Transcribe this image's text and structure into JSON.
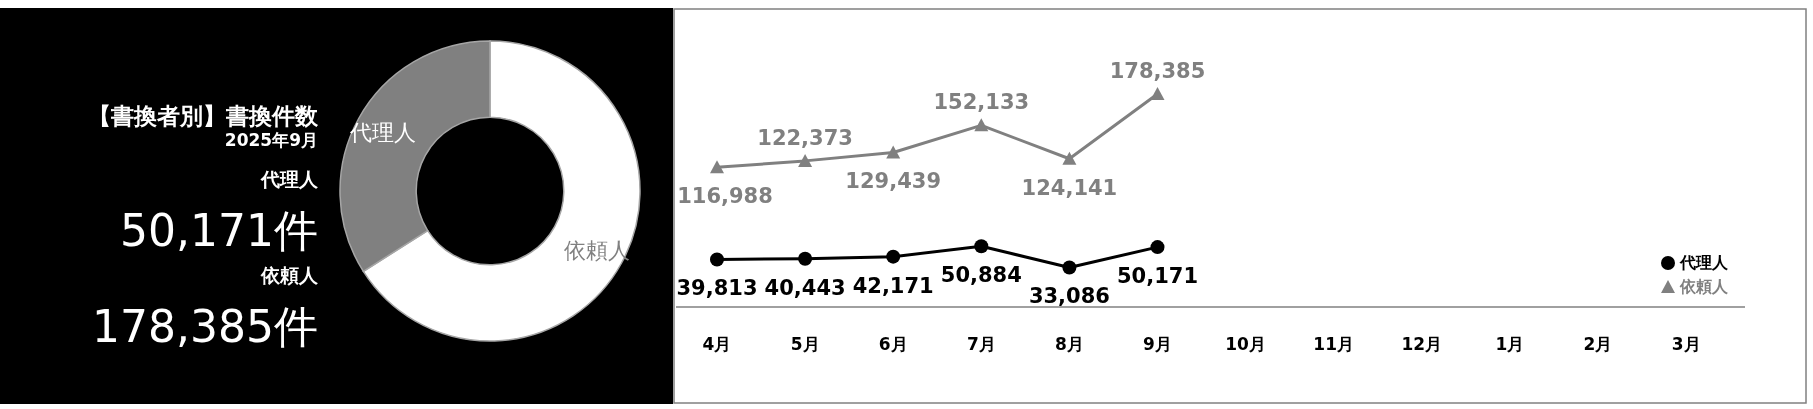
{
  "chart_data": [
    {
      "type": "donut",
      "title": "【書換者別】書換件数",
      "subtitle": "2025年9月",
      "annotations": [
        "代理人",
        "50,171件",
        "依頼人",
        "178,385件"
      ],
      "categories": [
        "依頼人",
        "代理人"
      ],
      "values": [
        66,
        34
      ],
      "colors": [
        "#ffffff",
        "#808080"
      ]
    },
    {
      "type": "line",
      "categories": [
        "4月",
        "5月",
        "6月",
        "7月",
        "8月",
        "9月",
        "10月",
        "11月",
        "12月",
        "1月",
        "2月",
        "3月"
      ],
      "legend": "bottom right",
      "series": [
        {
          "name": "代理人",
          "color": "#000000",
          "marker": "circle",
          "values": [
            39813,
            40443,
            42171,
            50884,
            33086,
            50171,
            null,
            null,
            null,
            null,
            null,
            null
          ],
          "value_labels": [
            "39,813",
            "40,443",
            "42,171",
            "50,884",
            "33,086",
            "50,171",
            null,
            null,
            null,
            null,
            null,
            null
          ]
        },
        {
          "name": "依頼人",
          "color": "#808080",
          "marker": "triangle",
          "values": [
            116988,
            122373,
            129439,
            152133,
            124141,
            178385,
            null,
            null,
            null,
            null,
            null,
            null
          ],
          "value_labels": [
            "116,988",
            "122,373",
            "129,439",
            "152,133",
            "124,141",
            "178,385",
            null,
            null,
            null,
            null,
            null,
            null
          ]
        }
      ]
    }
  ]
}
